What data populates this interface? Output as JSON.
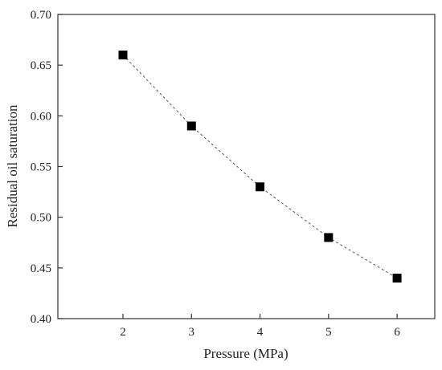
{
  "chart_data": {
    "type": "scatter",
    "xlabel": "Pressure (MPa)",
    "ylabel": "Residual oil saturation",
    "xlim": [
      1.05,
      6.55
    ],
    "ylim": [
      0.4,
      0.7
    ],
    "x_ticks": [
      "2",
      "3",
      "4",
      "5",
      "6"
    ],
    "y_ticks": [
      "0.40",
      "0.45",
      "0.50",
      "0.55",
      "0.60",
      "0.65",
      "0.70"
    ],
    "grid": false,
    "series": [
      {
        "x": [
          2,
          3,
          4,
          5,
          6
        ],
        "y": [
          0.66,
          0.59,
          0.53,
          0.48,
          0.44
        ],
        "marker": "square",
        "line": "dashed",
        "color": "#000000"
      }
    ]
  }
}
